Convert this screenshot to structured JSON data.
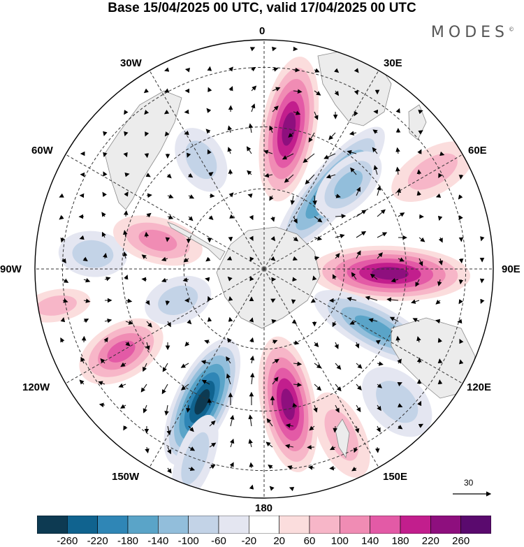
{
  "header": {
    "title": "Base 15/04/2025 00 UTC, valid 17/04/2025 00 UTC",
    "brand": "MODES",
    "brand_mark": "©"
  },
  "map": {
    "projection": "south-polar-stereographic",
    "longitude_labels": {
      "lon_0": "0",
      "lon_30e": "30E",
      "lon_60e": "60E",
      "lon_90e": "90E",
      "lon_120e": "120E",
      "lon_150e": "150E",
      "lon_180": "180",
      "lon_150w": "150W",
      "lon_120w": "120W",
      "lon_90w": "90W",
      "lon_60w": "60W",
      "lon_30w": "30W"
    },
    "reference_vector_label": "30",
    "land_color": "#ececec",
    "coast_color": "#8a8a8a"
  },
  "colorbar": {
    "labels": [
      "-260",
      "-220",
      "-180",
      "-140",
      "-100",
      "-60",
      "-20",
      "20",
      "60",
      "100",
      "140",
      "180",
      "220",
      "260"
    ],
    "colors": [
      "#0d3a52",
      "#10638f",
      "#2f86b6",
      "#5aa4c8",
      "#92bedb",
      "#c3d3e7",
      "#e4e6f1",
      "#ffffff",
      "#fbdddd",
      "#f7b6c8",
      "#f08cb4",
      "#e35aa6",
      "#c21e8d",
      "#8e0f7e",
      "#5a0a6e"
    ]
  },
  "anomalies": [
    {
      "lon": 10,
      "r": 0.62,
      "rx": 0.32,
      "ry": 0.12,
      "value": 250
    },
    {
      "lon": 40,
      "r": 0.45,
      "rx": 0.35,
      "ry": 0.1,
      "value": -200
    },
    {
      "lon": 92,
      "r": 0.55,
      "rx": 0.35,
      "ry": 0.12,
      "value": 240
    },
    {
      "lon": 118,
      "r": 0.55,
      "rx": 0.3,
      "ry": 0.1,
      "value": -170
    },
    {
      "lon": 170,
      "r": 0.6,
      "rx": 0.3,
      "ry": 0.12,
      "value": 230
    },
    {
      "lon": 205,
      "r": 0.64,
      "rx": 0.3,
      "ry": 0.12,
      "value": -260
    },
    {
      "lon": 240,
      "r": 0.72,
      "rx": 0.2,
      "ry": 0.12,
      "value": 170
    },
    {
      "lon": 45,
      "r": 0.52,
      "rx": 0.18,
      "ry": 0.1,
      "value": -110
    },
    {
      "lon": 275,
      "r": 0.75,
      "rx": 0.15,
      "ry": 0.1,
      "value": -90
    },
    {
      "lon": 285,
      "r": 0.48,
      "rx": 0.2,
      "ry": 0.1,
      "value": 110
    },
    {
      "lon": 155,
      "r": 0.8,
      "rx": 0.2,
      "ry": 0.1,
      "value": 90
    },
    {
      "lon": 330,
      "r": 0.55,
      "rx": 0.15,
      "ry": 0.1,
      "value": -60
    },
    {
      "lon": 135,
      "r": 0.82,
      "rx": 0.18,
      "ry": 0.12,
      "value": -60
    },
    {
      "lon": 200,
      "r": 0.88,
      "rx": 0.2,
      "ry": 0.08,
      "value": -90
    },
    {
      "lon": 60,
      "r": 0.85,
      "rx": 0.2,
      "ry": 0.1,
      "value": 60
    },
    {
      "lon": 250,
      "r": 0.4,
      "rx": 0.15,
      "ry": 0.1,
      "value": -60
    },
    {
      "lon": 260,
      "r": 0.92,
      "rx": 0.15,
      "ry": 0.07,
      "value": 60
    }
  ]
}
